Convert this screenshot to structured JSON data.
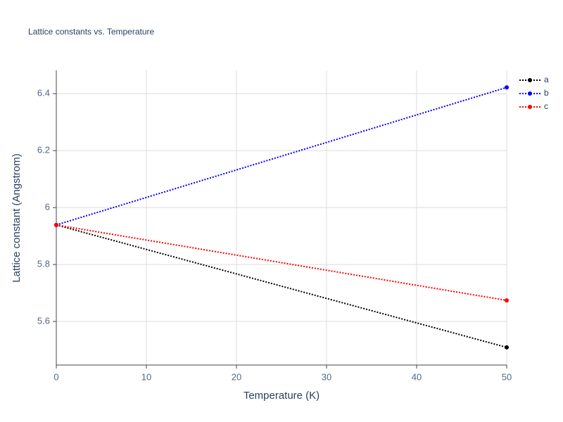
{
  "chart_data": {
    "type": "line",
    "title": "Lattice constants vs. Temperature",
    "x_label": "Temperature (K)",
    "y_label": "Lattice constant (Angstrom)",
    "x": [
      0,
      50
    ],
    "series": [
      {
        "name": "a",
        "color": "#000000",
        "values": [
          5.939,
          5.509
        ]
      },
      {
        "name": "b",
        "color": "#0000ff",
        "values": [
          5.939,
          6.422
        ]
      },
      {
        "name": "c",
        "color": "#ff0000",
        "values": [
          5.939,
          5.674
        ]
      }
    ],
    "xlim": [
      0,
      50
    ],
    "xticks": [
      0,
      10,
      20,
      30,
      40,
      50
    ],
    "ylim": [
      5.447,
      6.482
    ],
    "yticks": [
      5.6,
      5.8,
      6,
      6.2,
      6.4
    ],
    "grid": true,
    "legend": "top-right",
    "line_style": "dotted"
  }
}
